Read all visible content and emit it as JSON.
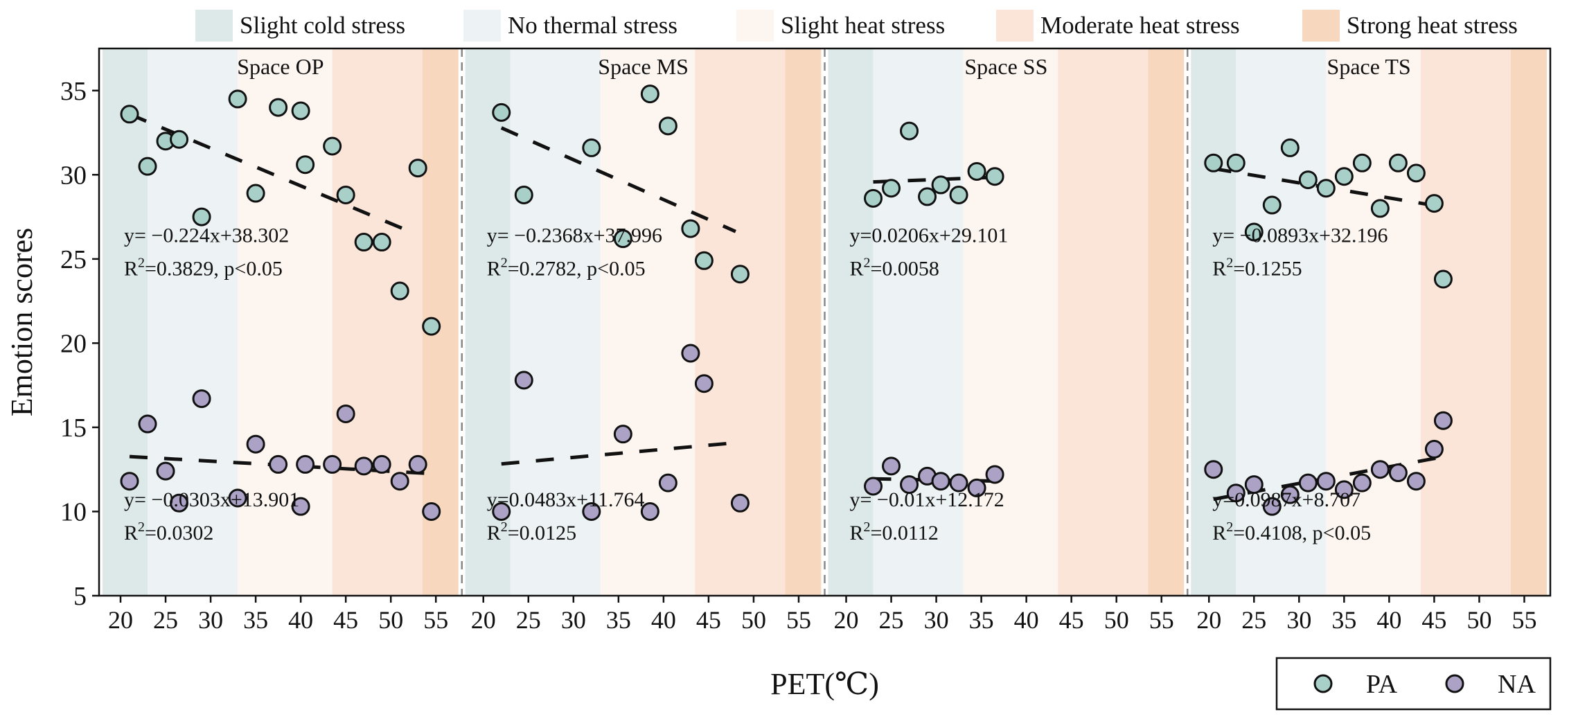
{
  "colors": {
    "pa_fill": "#a8cfc8",
    "na_fill": "#aba2c6",
    "marker_stroke": "#111111",
    "fit_line": "#111111",
    "divider": "#888888"
  },
  "legend_top": [
    {
      "label": "Slight cold stress",
      "color": "#dde9e8"
    },
    {
      "label": "No thermal stress",
      "color": "#edf3f4"
    },
    {
      "label": "Slight heat stress",
      "color": "#fdf5f0"
    },
    {
      "label": "Moderate heat stress",
      "color": "#fbe4d8"
    },
    {
      "label": "Strong heat stress",
      "color": "#f8d7bf"
    }
  ],
  "legend_bottom": [
    {
      "label": "PA",
      "symbol": "circle",
      "color": "#a8cfc8"
    },
    {
      "label": "NA",
      "symbol": "circle",
      "color": "#aba2c6"
    }
  ],
  "chart_data": {
    "type": "scatter",
    "xlabel": "PET(℃)",
    "ylabel": "Emotion scores",
    "ylim": [
      5,
      37.5
    ],
    "yticks": [
      5,
      10,
      15,
      20,
      25,
      30,
      35
    ],
    "xlim": [
      18,
      57.5
    ],
    "xticks": [
      20,
      25,
      30,
      35,
      40,
      45,
      50,
      55
    ],
    "stress_bands": [
      {
        "from": 18,
        "to": 23,
        "color": "#dde9e8"
      },
      {
        "from": 23,
        "to": 33,
        "color": "#edf3f4"
      },
      {
        "from": 33,
        "to": 43.5,
        "color": "#fdf5f0"
      },
      {
        "from": 43.5,
        "to": 53.5,
        "color": "#fbe4d8"
      },
      {
        "from": 53.5,
        "to": 57.5,
        "color": "#f8d7bf"
      }
    ],
    "panels": [
      {
        "title": "Space OP",
        "series": [
          {
            "name": "PA",
            "x": [
              21,
              23,
              25,
              26.5,
              29,
              33,
              35,
              37.5,
              40,
              40.5,
              43.5,
              45,
              47,
              49,
              51,
              53,
              54.5
            ],
            "y": [
              33.6,
              30.5,
              32,
              32.1,
              27.5,
              34.5,
              28.9,
              34,
              33.8,
              30.6,
              31.7,
              28.8,
              26,
              26,
              23.1,
              30.4,
              21
            ],
            "fit": {
              "slope": -0.224,
              "intercept": 38.302,
              "x_range": [
                21,
                52
              ]
            }
          },
          {
            "name": "NA",
            "x": [
              21,
              23,
              25,
              26.5,
              29,
              33,
              35,
              37.5,
              40,
              40.5,
              43.5,
              45,
              47,
              49,
              51,
              53,
              54.5
            ],
            "y": [
              11.8,
              15.2,
              12.4,
              10.5,
              16.7,
              10.8,
              14,
              12.8,
              10.3,
              12.8,
              12.8,
              15.8,
              12.7,
              12.8,
              11.8,
              12.8,
              10
            ],
            "fit": {
              "slope": -0.0303,
              "intercept": 13.901,
              "x_range": [
                21,
                54.5
              ]
            }
          }
        ],
        "annotations": [
          {
            "equation": "y= −0.224x+38.302",
            "r2_label": "R",
            "r2_sup": "2",
            "r2_value": "=0.3829, p<0.05",
            "y": 26
          },
          {
            "equation": "y= −0.0303x+13.901",
            "r2_label": "R",
            "r2_sup": "2",
            "r2_value": "=0.0302",
            "y": 10.3
          }
        ]
      },
      {
        "title": "Space MS",
        "series": [
          {
            "name": "PA",
            "x": [
              22,
              24.5,
              32,
              35.5,
              38.5,
              40.5,
              43,
              44.5,
              48.5
            ],
            "y": [
              33.7,
              28.8,
              31.6,
              26.2,
              34.8,
              32.9,
              26.8,
              24.9,
              24.1
            ],
            "fit": {
              "slope": -0.2368,
              "intercept": 37.996,
              "x_range": [
                22,
                48
              ]
            }
          },
          {
            "name": "NA",
            "x": [
              22,
              24.5,
              32,
              35.5,
              38.5,
              40.5,
              43,
              44.5,
              48.5
            ],
            "y": [
              10,
              17.8,
              10,
              14.6,
              10,
              11.7,
              19.4,
              17.6,
              10.5
            ],
            "fit": {
              "slope": 0.0483,
              "intercept": 11.764,
              "x_range": [
                22,
                48.5
              ]
            }
          }
        ],
        "annotations": [
          {
            "equation": "y= −0.2368x+37.996",
            "r2_label": "R",
            "r2_sup": "2",
            "r2_value": "=0.2782, p<0.05",
            "y": 26
          },
          {
            "equation": "y=0.0483x+11.764",
            "r2_label": "R",
            "r2_sup": "2",
            "r2_value": "=0.0125",
            "y": 10.3
          }
        ]
      },
      {
        "title": "Space SS",
        "series": [
          {
            "name": "PA",
            "x": [
              23,
              25,
              27,
              29,
              30.5,
              32.5,
              34.5,
              36.5
            ],
            "y": [
              28.6,
              29.2,
              32.6,
              28.7,
              29.4,
              28.8,
              30.2,
              29.9
            ],
            "fit": {
              "slope": 0.0206,
              "intercept": 29.101,
              "x_range": [
                23,
                37
              ]
            }
          },
          {
            "name": "NA",
            "x": [
              23,
              25,
              27,
              29,
              30.5,
              32.5,
              34.5,
              36.5
            ],
            "y": [
              11.5,
              12.7,
              11.6,
              12.1,
              11.8,
              11.7,
              11.4,
              12.2
            ],
            "fit": {
              "slope": -0.01,
              "intercept": 12.172,
              "x_range": [
                23,
                37
              ]
            }
          }
        ],
        "annotations": [
          {
            "equation": "y=0.0206x+29.101",
            "r2_label": "R",
            "r2_sup": "2",
            "r2_value": "=0.0058",
            "y": 26
          },
          {
            "equation": "y= −0.01x+12.172",
            "r2_label": "R",
            "r2_sup": "2",
            "r2_value": "=0.0112",
            "y": 10.3
          }
        ]
      },
      {
        "title": "Space TS",
        "series": [
          {
            "name": "PA",
            "x": [
              20.5,
              23,
              25,
              27,
              29,
              31,
              33,
              35,
              37,
              39,
              41,
              43,
              45,
              46
            ],
            "y": [
              30.7,
              30.7,
              26.6,
              28.2,
              31.6,
              29.7,
              29.2,
              29.9,
              30.7,
              28,
              30.7,
              30.1,
              28.3,
              23.8
            ],
            "fit": {
              "slope": -0.0893,
              "intercept": 32.196,
              "x_range": [
                20.5,
                46
              ]
            }
          },
          {
            "name": "NA",
            "x": [
              20.5,
              23,
              25,
              27,
              29,
              31,
              33,
              35,
              37,
              39,
              41,
              43,
              45,
              46
            ],
            "y": [
              12.5,
              11.1,
              11.6,
              10.3,
              11,
              11.7,
              11.8,
              11.3,
              11.7,
              12.5,
              12.3,
              11.8,
              13.7,
              15.4
            ],
            "fit": {
              "slope": 0.0987,
              "intercept": 8.707,
              "x_range": [
                20.5,
                46
              ]
            }
          }
        ],
        "annotations": [
          {
            "equation": "y= −0.0893x+32.196",
            "r2_label": "R",
            "r2_sup": "2",
            "r2_value": "=0.1255",
            "y": 26
          },
          {
            "equation": "y=0.0987x+8.707",
            "r2_label": "R",
            "r2_sup": "2",
            "r2_value": "=0.4108, p<0.05",
            "y": 10.3
          }
        ]
      }
    ]
  }
}
